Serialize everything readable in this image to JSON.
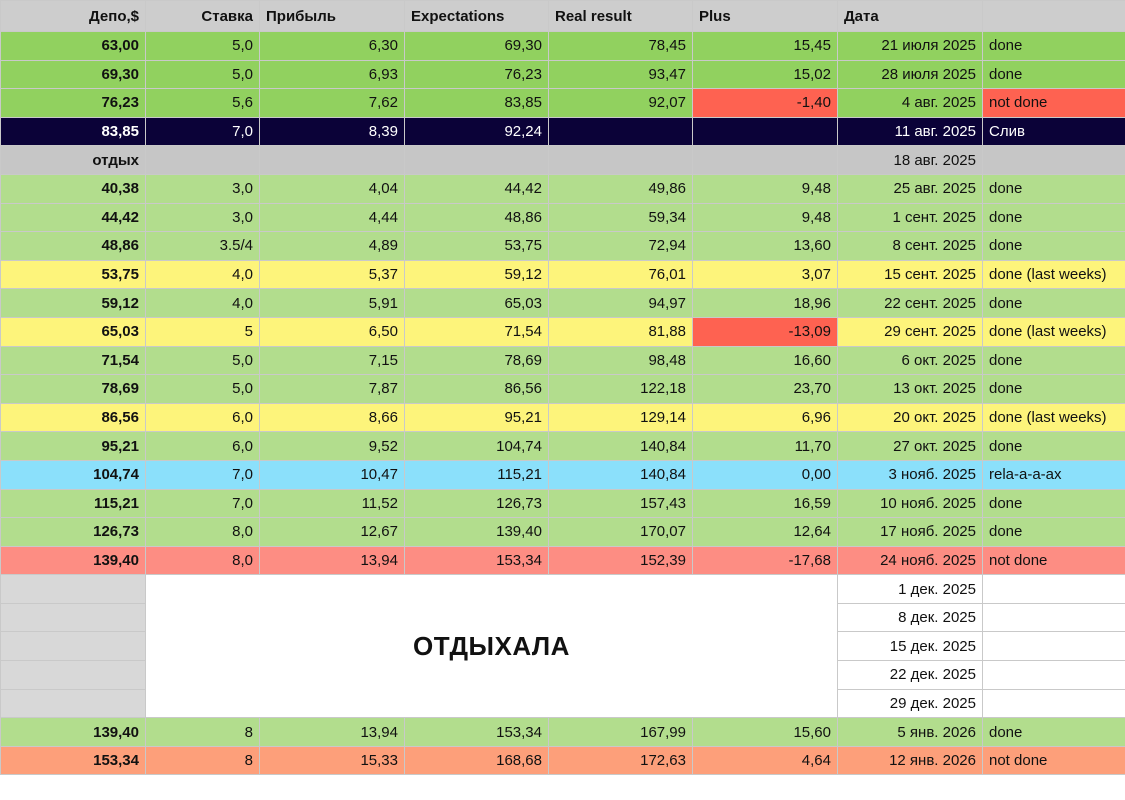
{
  "header": [
    "Депо,$",
    "Ставка",
    "Прибыль",
    "Expectations",
    "Real result",
    "Plus",
    "Дата",
    ""
  ],
  "rest_label": "ОТДЫХАЛА",
  "rows": [
    {
      "style": "bright",
      "depo": "63,00",
      "stavka": "5,0",
      "pribyl": "6,30",
      "exp": "69,30",
      "real": "78,45",
      "plus": "15,45",
      "date": "21 июля 2025",
      "status": "done"
    },
    {
      "style": "bright",
      "depo": "69,30",
      "stavka": "5,0",
      "pribyl": "6,93",
      "exp": "76,23",
      "real": "93,47",
      "plus": "15,02",
      "date": "28 июля 2025",
      "status": "done"
    },
    {
      "style": "bright",
      "depo": "76,23",
      "stavka": "5,6",
      "pribyl": "7,62",
      "exp": "83,85",
      "real": "92,07",
      "plus": "-1,40",
      "date": "4 авг. 2025",
      "status": "not done",
      "red_plus": true,
      "red_status": true
    },
    {
      "style": "navy",
      "depo": "83,85",
      "stavka": "7,0",
      "pribyl": "8,39",
      "exp": "92,24",
      "real": "",
      "plus": "",
      "date": "11 авг. 2025",
      "status": "Слив"
    },
    {
      "style": "gray",
      "depo": "отдых",
      "stavka": "",
      "pribyl": "",
      "exp": "",
      "real": "",
      "plus": "",
      "date": "18 авг. 2025",
      "status": ""
    },
    {
      "style": "green",
      "depo": "40,38",
      "stavka": "3,0",
      "pribyl": "4,04",
      "exp": "44,42",
      "real": "49,86",
      "plus": "9,48",
      "date": "25 авг. 2025",
      "status": "done"
    },
    {
      "style": "green",
      "depo": "44,42",
      "stavka": "3,0",
      "pribyl": "4,44",
      "exp": "48,86",
      "real": "59,34",
      "plus": "9,48",
      "date": "1 сент. 2025",
      "status": "done"
    },
    {
      "style": "green",
      "depo": "48,86",
      "stavka": "3.5/4",
      "pribyl": "4,89",
      "exp": "53,75",
      "real": "72,94",
      "plus": "13,60",
      "date": "8 сент. 2025",
      "status": "done"
    },
    {
      "style": "yellow",
      "depo": "53,75",
      "stavka": "4,0",
      "pribyl": "5,37",
      "exp": "59,12",
      "real": "76,01",
      "plus": "3,07",
      "date": "15 сент. 2025",
      "status": "done (last weeks)"
    },
    {
      "style": "green",
      "depo": "59,12",
      "stavka": "4,0",
      "pribyl": "5,91",
      "exp": "65,03",
      "real": "94,97",
      "plus": "18,96",
      "date": "22 сент. 2025",
      "status": "done"
    },
    {
      "style": "yellow",
      "depo": "65,03",
      "stavka": "5",
      "pribyl": "6,50",
      "exp": "71,54",
      "real": "81,88",
      "plus": "-13,09",
      "date": "29 сент. 2025",
      "status": "done (last weeks)",
      "red_plus": true
    },
    {
      "style": "green",
      "depo": "71,54",
      "stavka": "5,0",
      "pribyl": "7,15",
      "exp": "78,69",
      "real": "98,48",
      "plus": "16,60",
      "date": "6 окт. 2025",
      "status": "done"
    },
    {
      "style": "green",
      "depo": "78,69",
      "stavka": "5,0",
      "pribyl": "7,87",
      "exp": "86,56",
      "real": "122,18",
      "plus": "23,70",
      "date": "13 окт. 2025",
      "status": "done"
    },
    {
      "style": "yellow",
      "depo": "86,56",
      "stavka": "6,0",
      "pribyl": "8,66",
      "exp": "95,21",
      "real": "129,14",
      "plus": "6,96",
      "date": "20 окт. 2025",
      "status": "done (last weeks)"
    },
    {
      "style": "green",
      "depo": "95,21",
      "stavka": "6,0",
      "pribyl": "9,52",
      "exp": "104,74",
      "real": "140,84",
      "plus": "11,70",
      "date": "27 окт. 2025",
      "status": "done"
    },
    {
      "style": "blue",
      "depo": "104,74",
      "stavka": "7,0",
      "pribyl": "10,47",
      "exp": "115,21",
      "real": "140,84",
      "plus": "0,00",
      "date": "3 нояб. 2025",
      "status": "rela-a-a-ax"
    },
    {
      "style": "green",
      "depo": "115,21",
      "stavka": "7,0",
      "pribyl": "11,52",
      "exp": "126,73",
      "real": "157,43",
      "plus": "16,59",
      "date": "10 нояб. 2025",
      "status": "done"
    },
    {
      "style": "green",
      "depo": "126,73",
      "stavka": "8,0",
      "pribyl": "12,67",
      "exp": "139,40",
      "real": "170,07",
      "plus": "12,64",
      "date": "17 нояб. 2025",
      "status": "done"
    },
    {
      "style": "salmon",
      "depo": "139,40",
      "stavka": "8,0",
      "pribyl": "13,94",
      "exp": "153,34",
      "real": "152,39",
      "plus": "-17,68",
      "date": "24 нояб. 2025",
      "status": "not done"
    }
  ],
  "rest_dates": [
    "1 дек. 2025",
    "8 дек. 2025",
    "15 дек. 2025",
    "22 дек. 2025",
    "29 дек. 2025"
  ],
  "final_rows": [
    {
      "style": "green",
      "depo": "139,40",
      "stavka": "8",
      "pribyl": "13,94",
      "exp": "153,34",
      "real": "167,99",
      "plus": "15,60",
      "date": "5 янв. 2026",
      "status": "done"
    },
    {
      "style": "orange",
      "depo": "153,34",
      "stavka": "8",
      "pribyl": "15,33",
      "exp": "168,68",
      "real": "172,63",
      "plus": "4,64",
      "date": "12 янв. 2026",
      "status": "not done"
    }
  ],
  "colors": {
    "green": "#b2dd8d",
    "bright_green": "#91d15f",
    "navy": "#0b0238",
    "gray": "#c6c6c6",
    "yellow": "#fdf47b",
    "blue": "#8be0fb",
    "salmon": "#fd8d83",
    "orange": "#fd9f7a",
    "red": "#fe6251"
  }
}
